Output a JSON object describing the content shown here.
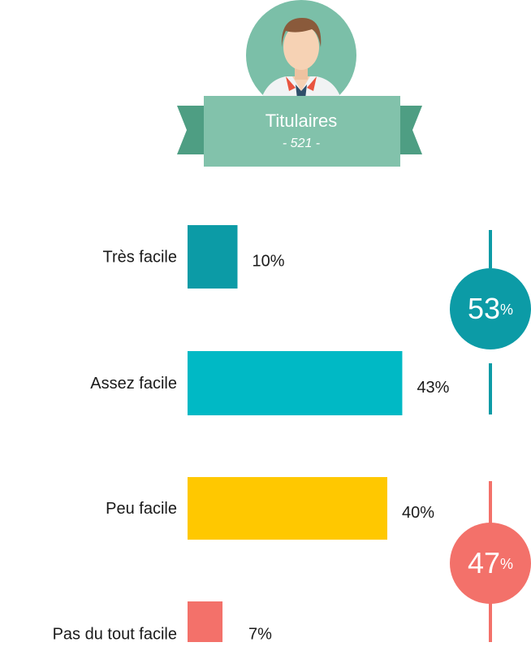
{
  "chart_data": {
    "type": "bar",
    "orientation": "horizontal",
    "header": {
      "title": "Titulaires",
      "subtitle": "- 521 -"
    },
    "categories": [
      "Très facile",
      "Assez facile",
      "Peu facile",
      "Pas du tout facile"
    ],
    "values": [
      10,
      43,
      40,
      7
    ],
    "value_labels": [
      "10%",
      "43%",
      "40%",
      "7%"
    ],
    "colors": [
      "#0c9ba6",
      "#00b9c5",
      "#ffc800",
      "#f3716a"
    ],
    "groups": [
      {
        "value": 53,
        "unit": "%",
        "color": "#0c9ba6"
      },
      {
        "value": 47,
        "unit": "%",
        "color": "#f3716a"
      }
    ]
  }
}
